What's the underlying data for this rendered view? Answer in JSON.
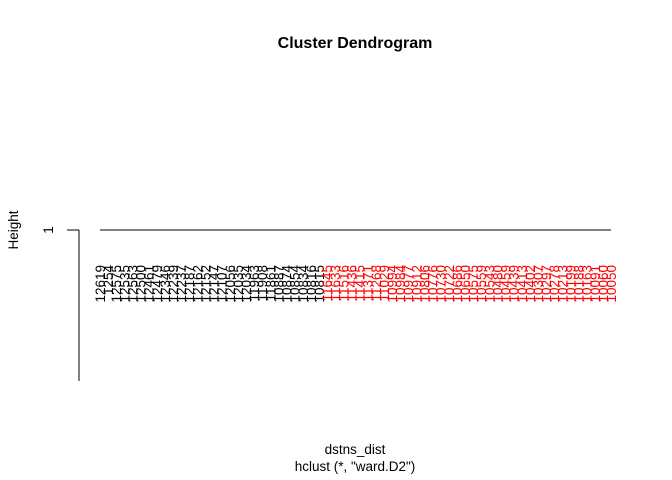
{
  "chart_data": {
    "type": "dendrogram",
    "title": "Cluster Dendrogram",
    "xlabel": "dstns_dist",
    "sublabel": "hclust (*, \"ward.D2\")",
    "ylabel": "Height",
    "yticks": [
      1
    ],
    "merge_height": 1,
    "colors": {
      "cluster_1": "#000000",
      "cluster_2": "#ff0000",
      "axis": "#000000"
    },
    "leaves": [
      {
        "label": "12619",
        "cluster": 1
      },
      {
        "label": "1254",
        "cluster": 1
      },
      {
        "label": "12575",
        "cluster": 1
      },
      {
        "label": "12535",
        "cluster": 1
      },
      {
        "label": "12563",
        "cluster": 1
      },
      {
        "label": "12500",
        "cluster": 1
      },
      {
        "label": "12461",
        "cluster": 1
      },
      {
        "label": "12479",
        "cluster": 1
      },
      {
        "label": "12346",
        "cluster": 1
      },
      {
        "label": "12239",
        "cluster": 1
      },
      {
        "label": "12237",
        "cluster": 1
      },
      {
        "label": "12187",
        "cluster": 1
      },
      {
        "label": "12162",
        "cluster": 1
      },
      {
        "label": "12152",
        "cluster": 1
      },
      {
        "label": "12147",
        "cluster": 1
      },
      {
        "label": "12107",
        "cluster": 1
      },
      {
        "label": "12056",
        "cluster": 1
      },
      {
        "label": "12035",
        "cluster": 1
      },
      {
        "label": "12034",
        "cluster": 1
      },
      {
        "label": "11963",
        "cluster": 1
      },
      {
        "label": "11908",
        "cluster": 1
      },
      {
        "label": "11861",
        "cluster": 1
      },
      {
        "label": "10887",
        "cluster": 1
      },
      {
        "label": "10874",
        "cluster": 1
      },
      {
        "label": "10854",
        "cluster": 1
      },
      {
        "label": "10834",
        "cluster": 1
      },
      {
        "label": "10816",
        "cluster": 1
      },
      {
        "label": "10815",
        "cluster": 1
      },
      {
        "label": "11645",
        "cluster": 2
      },
      {
        "label": "11633",
        "cluster": 2
      },
      {
        "label": "11516",
        "cluster": 2
      },
      {
        "label": "11436",
        "cluster": 2
      },
      {
        "label": "11415",
        "cluster": 2
      },
      {
        "label": "11371",
        "cluster": 2
      },
      {
        "label": "11268",
        "cluster": 2
      },
      {
        "label": "11029",
        "cluster": 2
      },
      {
        "label": "10994",
        "cluster": 2
      },
      {
        "label": "10984",
        "cluster": 2
      },
      {
        "label": "10977",
        "cluster": 2
      },
      {
        "label": "10912",
        "cluster": 2
      },
      {
        "label": "10806",
        "cluster": 2
      },
      {
        "label": "10776",
        "cluster": 2
      },
      {
        "label": "10730",
        "cluster": 2
      },
      {
        "label": "10722",
        "cluster": 2
      },
      {
        "label": "10686",
        "cluster": 2
      },
      {
        "label": "10650",
        "cluster": 2
      },
      {
        "label": "10575",
        "cluster": 2
      },
      {
        "label": "10559",
        "cluster": 2
      },
      {
        "label": "10543",
        "cluster": 2
      },
      {
        "label": "10480",
        "cluster": 2
      },
      {
        "label": "10459",
        "cluster": 2
      },
      {
        "label": "10439",
        "cluster": 2
      },
      {
        "label": "10413",
        "cluster": 2
      },
      {
        "label": "10402",
        "cluster": 2
      },
      {
        "label": "10307",
        "cluster": 2
      },
      {
        "label": "10297",
        "cluster": 2
      },
      {
        "label": "10278",
        "cluster": 2
      },
      {
        "label": "10213",
        "cluster": 2
      },
      {
        "label": "10199",
        "cluster": 2
      },
      {
        "label": "10188",
        "cluster": 2
      },
      {
        "label": "10163",
        "cluster": 2
      },
      {
        "label": "10091",
        "cluster": 2
      },
      {
        "label": "10060",
        "cluster": 2
      },
      {
        "label": "10050",
        "cluster": 2
      }
    ]
  }
}
